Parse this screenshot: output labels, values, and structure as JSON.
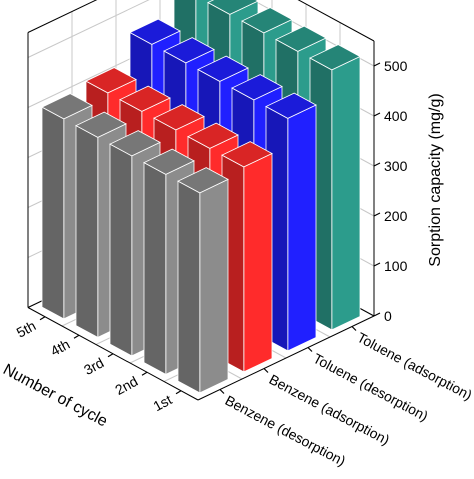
{
  "chart_data": {
    "type": "bar",
    "subtype": "3d-bar",
    "title": "",
    "x_axis_label": "Number of cycle",
    "x_categories": [
      "1st",
      "2nd",
      "3rd",
      "4th",
      "5th"
    ],
    "y_categories": [
      "Benzene (desorption)",
      "Benzene (adsorption)",
      "Toluene (desorption)",
      "Toluene (adsorption)"
    ],
    "z_axis_label": "Sorption capacity (mg/g)",
    "z_range": [
      0,
      550
    ],
    "z_ticks": [
      "0",
      "100",
      "200",
      "300",
      "400",
      "500"
    ],
    "grid": true,
    "series": [
      {
        "category": "Benzene (desorption)",
        "color": "#8c8c8c",
        "values": [
          400,
          400,
          400,
          400,
          400
        ]
      },
      {
        "category": "Benzene (adsorption)",
        "color": "#ff2b2b",
        "values": [
          410,
          410,
          410,
          410,
          410
        ]
      },
      {
        "category": "Toluene (desorption)",
        "color": "#2020ff",
        "values": [
          465,
          465,
          465,
          465,
          465
        ]
      },
      {
        "category": "Toluene (adsorption)",
        "color": "#2c9c8c",
        "values": [
          520,
          520,
          520,
          520,
          520
        ]
      }
    ]
  }
}
